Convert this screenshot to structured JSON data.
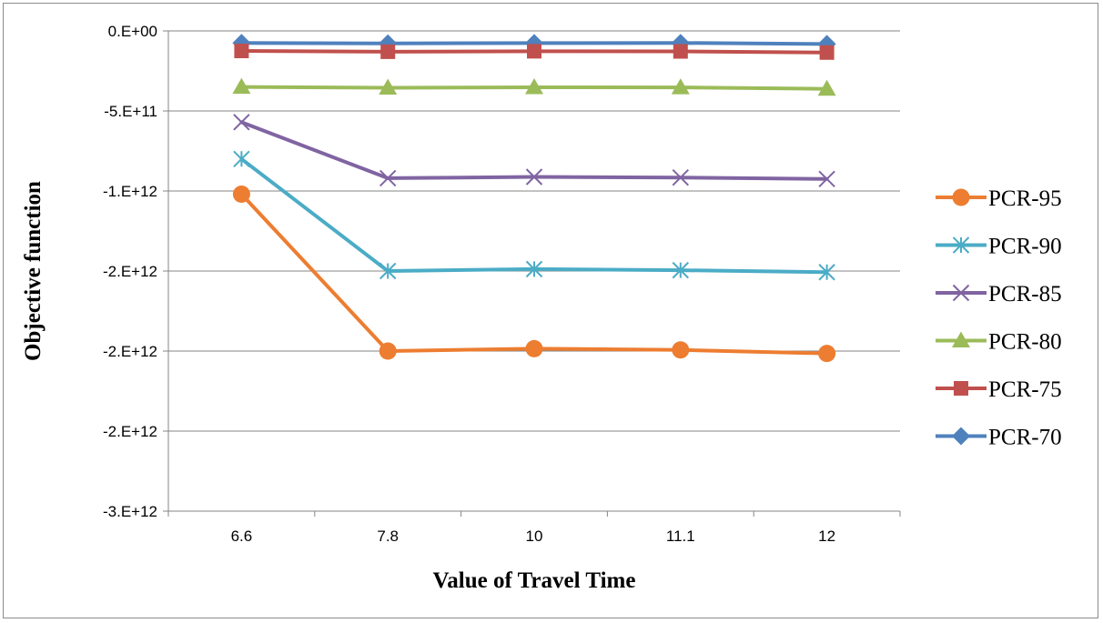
{
  "chart_data": {
    "type": "line",
    "title": "",
    "xlabel": "Value of Travel Time",
    "ylabel": "Objective function",
    "categories": [
      "6.6",
      "7.8",
      "10",
      "11.1",
      "12"
    ],
    "ylim": [
      -3000000000000,
      0
    ],
    "yticks": [
      0,
      -500000000000,
      -1000000000000,
      -1500000000000,
      -2000000000000,
      -2500000000000,
      -3000000000000
    ],
    "ytick_labels": [
      "0.E+00",
      "-5.E+11",
      "-1.E+12",
      "-2.E+12",
      "-2.E+12",
      "-2.E+12",
      "-3.E+12"
    ],
    "grid": "horizontal major",
    "legend_position": "right",
    "series": [
      {
        "name": "PCR-95",
        "color": "#ED7D31",
        "marker": "circle",
        "values": [
          -1020000000000,
          -2000000000000,
          -1985000000000,
          -1993000000000,
          -2015000000000
        ]
      },
      {
        "name": "PCR-90",
        "color": "#4BACC6",
        "marker": "star",
        "values": [
          -800000000000,
          -1500000000000,
          -1488000000000,
          -1495000000000,
          -1507000000000
        ]
      },
      {
        "name": "PCR-85",
        "color": "#8064A2",
        "marker": "x",
        "values": [
          -570000000000,
          -920000000000,
          -912000000000,
          -916000000000,
          -925000000000
        ]
      },
      {
        "name": "PCR-80",
        "color": "#9BBB59",
        "marker": "triangle",
        "values": [
          -350000000000,
          -355000000000,
          -352000000000,
          -353000000000,
          -362000000000
        ]
      },
      {
        "name": "PCR-75",
        "color": "#C0504D",
        "marker": "square",
        "values": [
          -125000000000,
          -130000000000,
          -127000000000,
          -128000000000,
          -135000000000
        ]
      },
      {
        "name": "PCR-70",
        "color": "#4F81BD",
        "marker": "diamond",
        "values": [
          -75000000000,
          -78000000000,
          -76000000000,
          -75000000000,
          -82000000000
        ]
      }
    ],
    "legend_order": [
      "PCR-95",
      "PCR-90",
      "PCR-85",
      "PCR-80",
      "PCR-75",
      "PCR-70"
    ]
  }
}
